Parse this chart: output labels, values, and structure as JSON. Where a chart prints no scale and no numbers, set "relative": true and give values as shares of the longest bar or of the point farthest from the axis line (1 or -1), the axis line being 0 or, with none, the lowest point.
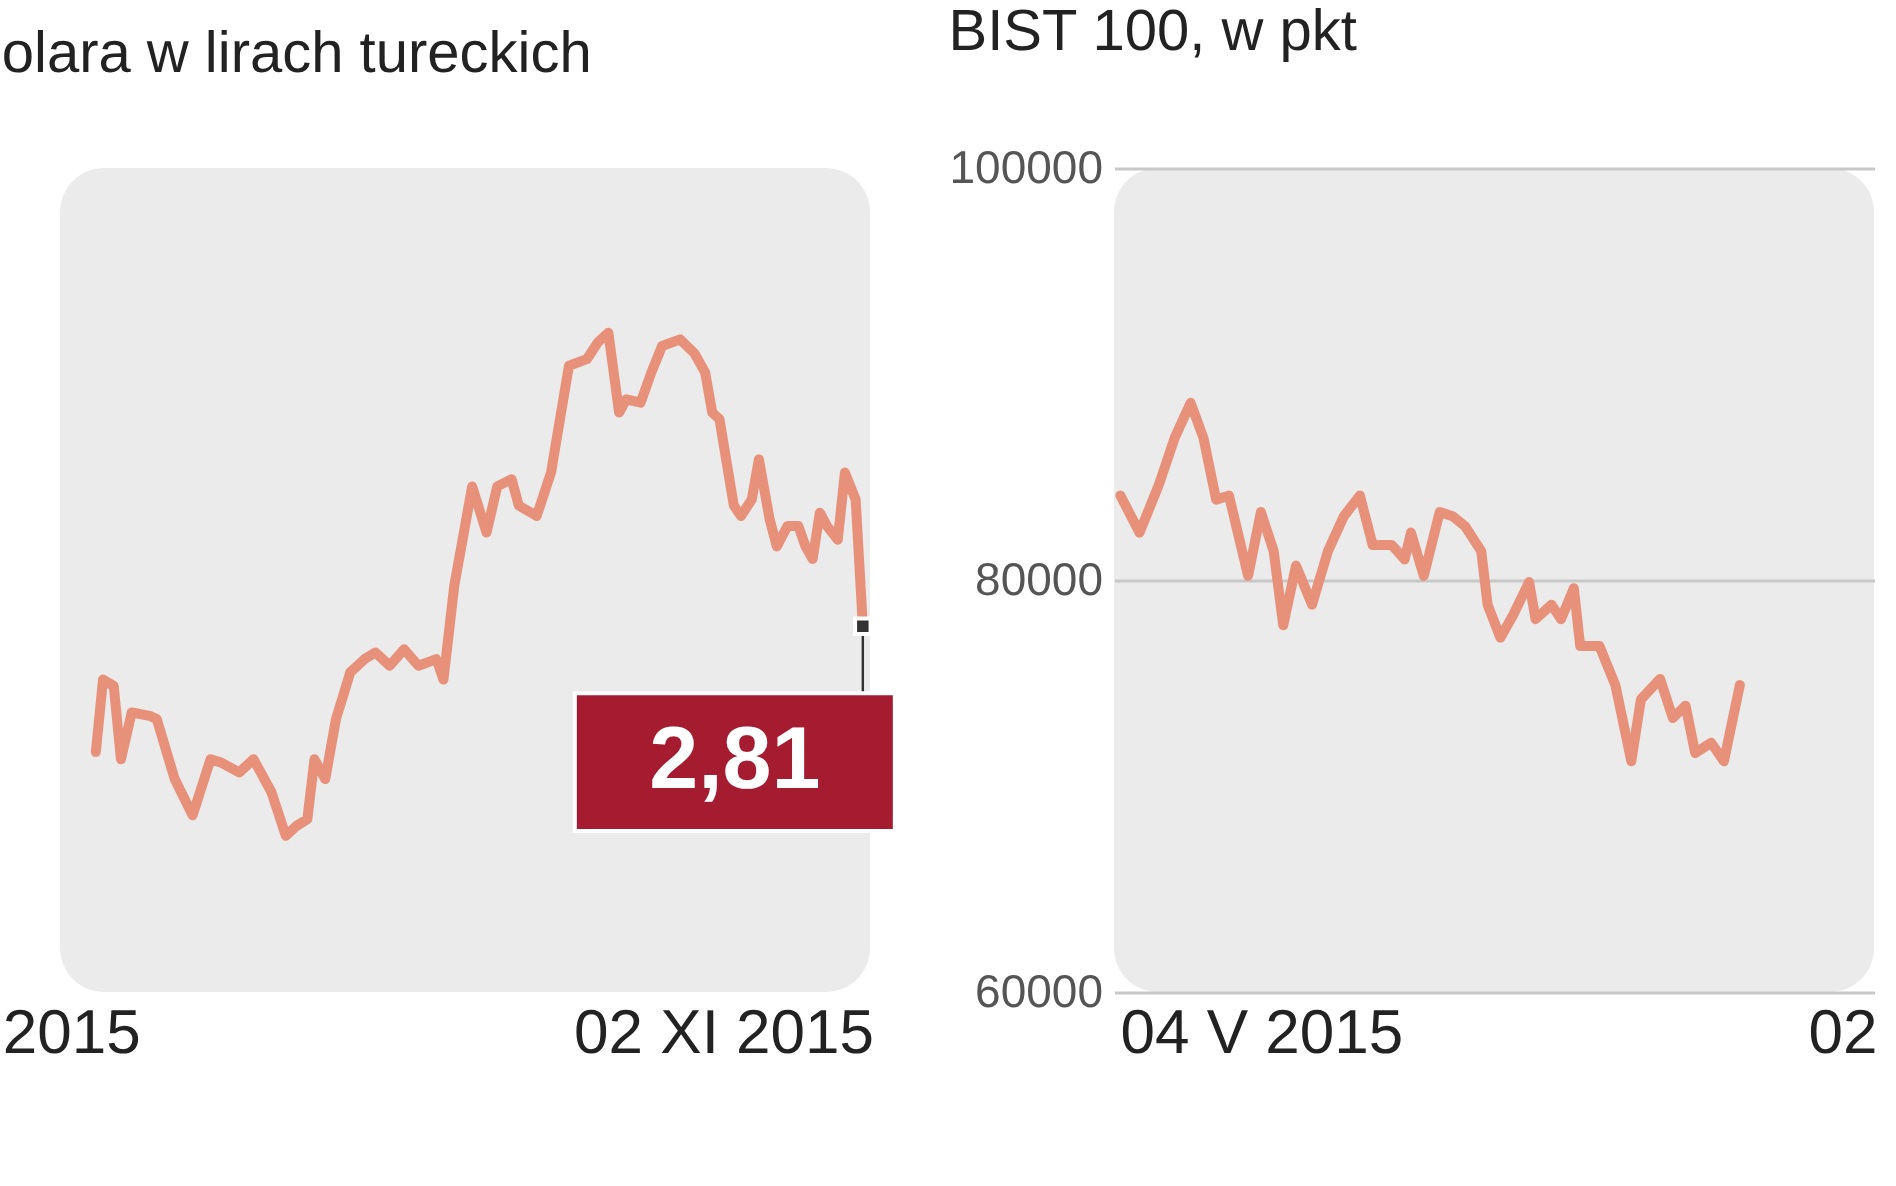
{
  "chart_data": [
    {
      "type": "line",
      "title": "olara w lirach tureckich",
      "relative": true,
      "xlim": [
        "2015-05-01",
        "2015-12-13"
      ],
      "xticks": [
        {
          "value": "2015-05-04",
          "label": "2015"
        },
        {
          "value": "2015-11-02",
          "label": "02 XI 2015"
        }
      ],
      "x": [
        "2015-05-11",
        "2015-05-13",
        "2015-05-16",
        "2015-05-18",
        "2015-05-21",
        "2015-05-26",
        "2015-05-28",
        "2015-06-02",
        "2015-06-07",
        "2015-06-12",
        "2015-06-15",
        "2015-06-20",
        "2015-06-24",
        "2015-06-29",
        "2015-07-03",
        "2015-07-06",
        "2015-07-09",
        "2015-07-11",
        "2015-07-14",
        "2015-07-17",
        "2015-07-21",
        "2015-07-25",
        "2015-07-28",
        "2015-08-01",
        "2015-08-05",
        "2015-08-09",
        "2015-08-14",
        "2015-08-16",
        "2015-08-19",
        "2015-08-24",
        "2015-08-28",
        "2015-08-31",
        "2015-09-04",
        "2015-09-06",
        "2015-09-11",
        "2015-09-15",
        "2015-09-20",
        "2015-09-25",
        "2015-09-28",
        "2015-10-01",
        "2015-10-04",
        "2015-10-06",
        "2015-10-10",
        "2015-10-13",
        "2015-10-16",
        "2015-10-21",
        "2015-10-25",
        "2015-10-28",
        "2015-10-30",
        "2015-11-01",
        "2015-11-05",
        "2015-11-07",
        "2015-11-10",
        "2015-11-12",
        "2015-11-15",
        "2015-11-17",
        "2015-11-20",
        "2015-11-23",
        "2015-11-25",
        "2015-11-27",
        "2015-11-29",
        "2015-12-01",
        "2015-12-04",
        "2015-12-06",
        "2015-12-09",
        "2015-12-11"
      ],
      "annotations": [
        {
          "text": "2,81",
          "x": "2015-12-11",
          "y": 0.555
        }
      ],
      "series": [
        {
          "color": "#e8917a",
          "values": [
            0.364,
            0.474,
            0.464,
            0.353,
            0.424,
            0.419,
            0.414,
            0.323,
            0.268,
            0.353,
            0.348,
            0.333,
            0.353,
            0.303,
            0.237,
            0.252,
            0.262,
            0.353,
            0.323,
            0.414,
            0.485,
            0.505,
            0.515,
            0.495,
            0.52,
            0.495,
            0.505,
            0.474,
            0.616,
            0.767,
            0.697,
            0.767,
            0.778,
            0.738,
            0.722,
            0.788,
            0.95,
            0.96,
            0.985,
            1,
            0.879,
            0.899,
            0.894,
            0.94,
            0.98,
            0.99,
            0.969,
            0.94,
            0.879,
            0.869,
            0.738,
            0.722,
            0.747,
            0.808,
            0.717,
            0.676,
            0.707,
            0.707,
            0.676,
            0.657,
            0.727,
            0.707,
            0.686,
            0.788,
            0.747,
            0.555
          ]
        }
      ]
    },
    {
      "type": "line",
      "title": "BIST 100, w pkt",
      "ylim": [
        60000,
        100000
      ],
      "yticks": [
        60000,
        80000,
        100000
      ],
      "grid": "y",
      "xlim": [
        "2015-03-19",
        "2015-11-12"
      ],
      "xticks": [
        {
          "value": "2015-05-04",
          "label": "04 V 2015"
        },
        {
          "value": "2015-11-02",
          "label": "02"
        }
      ],
      "x": [
        "2015-03-21",
        "2015-03-27",
        "2015-04-02",
        "2015-04-07",
        "2015-04-12",
        "2015-04-16",
        "2015-04-20",
        "2015-04-24",
        "2015-04-30",
        "2015-05-04",
        "2015-05-08",
        "2015-05-11",
        "2015-05-15",
        "2015-05-20",
        "2015-05-25",
        "2015-05-30",
        "2015-06-04",
        "2015-06-08",
        "2015-06-14",
        "2015-06-18",
        "2015-06-20",
        "2015-06-24",
        "2015-06-29",
        "2015-07-03",
        "2015-07-07",
        "2015-07-12",
        "2015-07-14",
        "2015-07-18",
        "2015-07-22",
        "2015-07-27",
        "2015-07-29",
        "2015-08-03",
        "2015-08-06",
        "2015-08-10",
        "2015-08-12",
        "2015-08-18",
        "2015-08-23",
        "2015-08-28",
        "2015-08-31",
        "2015-09-06",
        "2015-09-10",
        "2015-09-14",
        "2015-09-17",
        "2015-09-22",
        "2015-09-26",
        "2015-10-01"
      ],
      "series": [
        {
          "color": "#e8917a",
          "values": [
            84100,
            82300,
            84600,
            86900,
            88600,
            86900,
            83900,
            84100,
            80200,
            83300,
            81400,
            77800,
            80700,
            78800,
            81400,
            83100,
            84100,
            81700,
            81700,
            81000,
            82300,
            80200,
            83300,
            83100,
            82600,
            81400,
            78800,
            77200,
            78300,
            79900,
            78100,
            78800,
            78100,
            79600,
            76800,
            76800,
            74900,
            71200,
            74200,
            75200,
            73300,
            73900,
            71600,
            72100,
            71200,
            74900
          ]
        }
      ]
    }
  ]
}
